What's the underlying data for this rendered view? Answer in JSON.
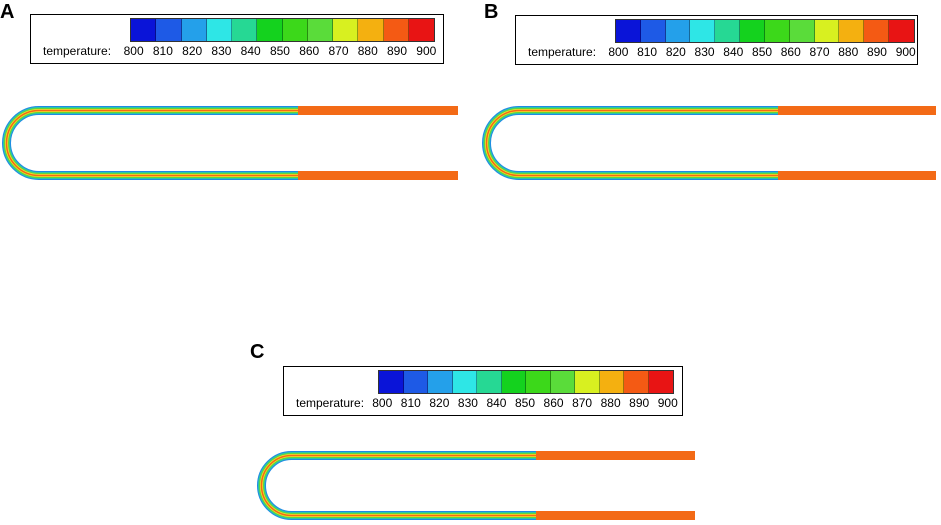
{
  "colors": {
    "scale": [
      "#0a14d8",
      "#1e5ae6",
      "#24a0ea",
      "#2ee6e6",
      "#26d894",
      "#14d21e",
      "#3cd81a",
      "#5adc3a",
      "#d8f020",
      "#f4b010",
      "#f45a14",
      "#e81414"
    ],
    "tube_core": "#f36a16",
    "tube_band1": "#f2e22a",
    "tube_band2": "#5fd63a",
    "tube_band3": "#2cc6a8",
    "tube_band4": "#1f8ae6"
  },
  "panels": [
    {
      "letter": "A",
      "legend_label": "temperature:",
      "ticks": [
        "800",
        "810",
        "820",
        "830",
        "840",
        "850",
        "860",
        "870",
        "880",
        "890",
        "900"
      ]
    },
    {
      "letter": "B",
      "legend_label": "temperature:",
      "ticks": [
        "800",
        "810",
        "820",
        "830",
        "840",
        "850",
        "860",
        "870",
        "880",
        "890",
        "900"
      ]
    },
    {
      "letter": "C",
      "legend_label": "temperature:",
      "ticks": [
        "800",
        "810",
        "820",
        "830",
        "840",
        "850",
        "860",
        "870",
        "880",
        "890",
        "900"
      ]
    }
  ]
}
